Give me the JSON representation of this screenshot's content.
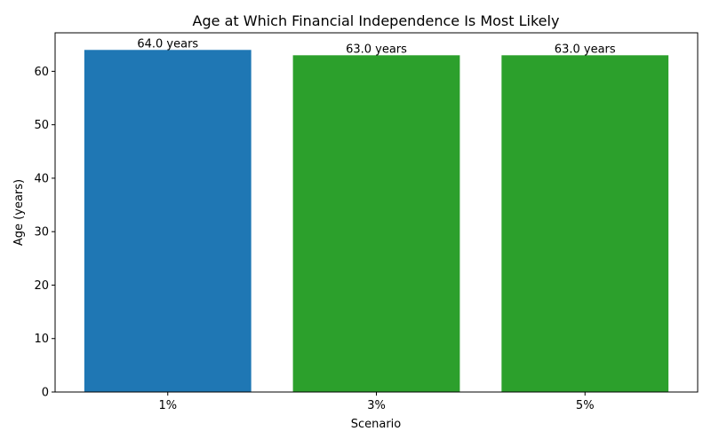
{
  "chart_data": {
    "type": "bar",
    "title": "Age at Which Financial Independence Is Most Likely",
    "xlabel": "Scenario",
    "ylabel": "Age (years)",
    "categories": [
      "1%",
      "3%",
      "5%"
    ],
    "values": [
      64.0,
      63.0,
      63.0
    ],
    "data_labels": [
      "64.0 years",
      "63.0 years",
      "63.0 years"
    ],
    "bar_colors": [
      "#1f77b4",
      "#2ca02c",
      "#2ca02c"
    ],
    "ylim": [
      0,
      67.2
    ],
    "yticks": [
      0,
      10,
      20,
      30,
      40,
      50,
      60
    ],
    "grid": false
  }
}
